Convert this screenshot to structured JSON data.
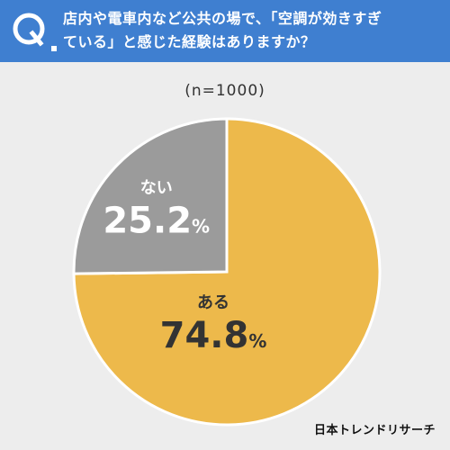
{
  "header": {
    "question_line1": "店内や電車内など公共の場で、「空調が効きすぎ",
    "question_line2": "ている」と感じた経験はありますか？",
    "icon": "q-icon",
    "color": "#3f7fd0"
  },
  "chart_data": {
    "type": "pie",
    "sample": "(n=1000)",
    "slices": [
      {
        "label": "ある",
        "value": 74.8,
        "display": "74.8",
        "color": "#edb94b"
      },
      {
        "label": "ない",
        "value": 25.2,
        "display": "25.2",
        "color": "#9b9b9b"
      }
    ],
    "unit": "%",
    "start_angle_deg": 0,
    "direction": "clockwise"
  },
  "footer": {
    "brand": "日本トレンドリサーチ"
  }
}
